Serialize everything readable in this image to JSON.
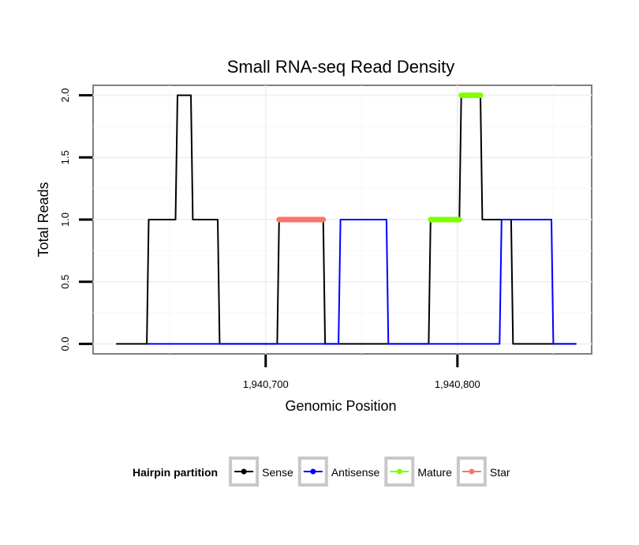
{
  "chart_data": {
    "type": "line",
    "title": "Small RNA-seq Read Density",
    "xlabel": "Genomic Position",
    "ylabel": "Total Reads",
    "xlim": [
      1940610,
      1940870
    ],
    "ylim": [
      -0.08,
      2.08
    ],
    "x_ticks": [
      1940700,
      1940800
    ],
    "x_tick_labels": [
      "1,940,700",
      "1,940,800"
    ],
    "y_ticks": [
      0,
      0.5,
      1,
      1.5,
      2
    ],
    "y_tick_labels": [
      "0.0",
      "0.5",
      "1.0",
      "1.5",
      "2.0"
    ],
    "grid": true,
    "legend_title": "Hairpin partition",
    "legend_position": "bottom",
    "series": [
      {
        "name": "Sense",
        "color": "#000000",
        "x": [
          1940622,
          1940638,
          1940639,
          1940653,
          1940654,
          1940661,
          1940662,
          1940675,
          1940676,
          1940706,
          1940707,
          1940730,
          1940731,
          1940785,
          1940786,
          1940801,
          1940802,
          1940812,
          1940813,
          1940824,
          1940825,
          1940828,
          1940829,
          1940862
        ],
        "y": [
          0,
          0,
          1,
          1,
          2,
          2,
          1,
          1,
          0,
          0,
          1,
          1,
          0,
          0,
          1,
          1,
          2,
          2,
          1,
          1,
          1,
          1,
          0,
          0
        ]
      },
      {
        "name": "Antisense",
        "color": "#0000ff",
        "x": [
          1940638,
          1940738,
          1940739,
          1940763,
          1940764,
          1940822,
          1940823,
          1940849,
          1940850,
          1940862
        ],
        "y": [
          0,
          0,
          1,
          1,
          0,
          0,
          1,
          1,
          0,
          0
        ]
      },
      {
        "name": "Mature",
        "color": "#7fff00",
        "segments": [
          {
            "x0": 1940786,
            "x1": 1940801,
            "y": 1
          },
          {
            "x0": 1940802,
            "x1": 1940812,
            "y": 2
          }
        ]
      },
      {
        "name": "Star",
        "color": "#f8766d",
        "segments": [
          {
            "x0": 1940707,
            "x1": 1940730,
            "y": 1
          }
        ]
      }
    ]
  }
}
